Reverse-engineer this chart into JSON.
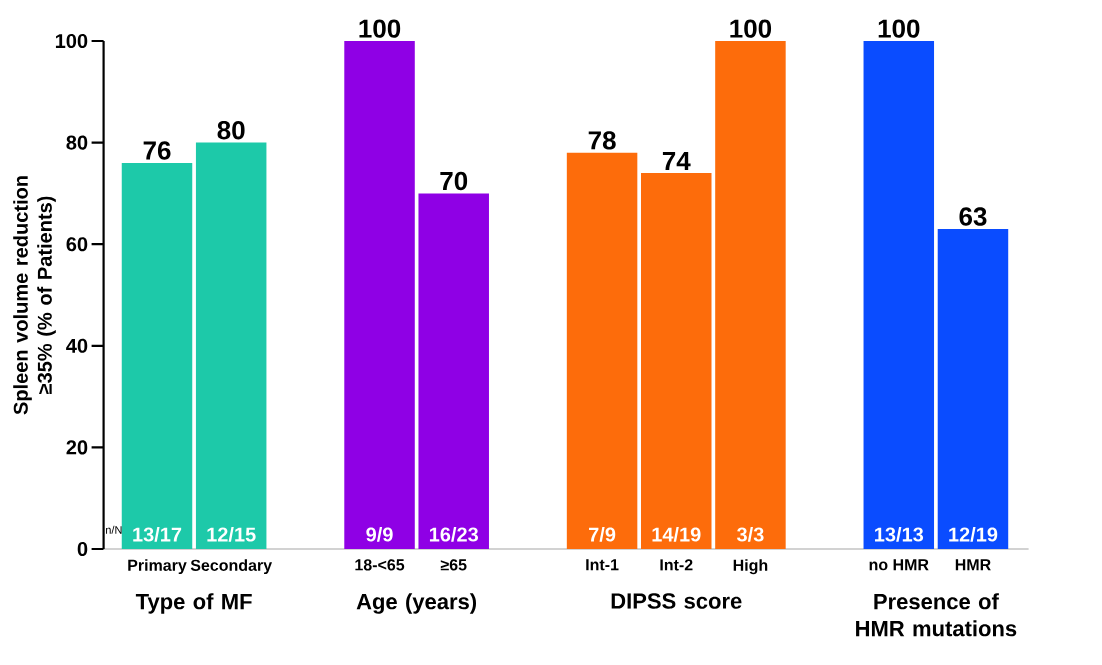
{
  "chart_data": {
    "type": "bar",
    "ylabel": "Spleen volume reduction ≥35% (% of Patients)",
    "categories": [
      "Primary",
      "Secondary",
      null,
      "18-<65",
      "≥65",
      null,
      "Int-1",
      "Int-2",
      "High",
      null,
      "no HMR",
      "HMR"
    ],
    "values": [
      76,
      80,
      null,
      100,
      70,
      null,
      78,
      74,
      100,
      null,
      100,
      63
    ],
    "colors": [
      "#1dc9a9",
      "#1dc9a9",
      null,
      "#8f00e5",
      "#8f00e5",
      null,
      "#fd6c0b",
      "#fd6c0b",
      "#fd6c0b",
      null,
      "#0a4cff",
      "#0a4cff"
    ],
    "ylim": [
      0,
      100
    ],
    "yticks": [
      0,
      20,
      40,
      60,
      80,
      100
    ],
    "grid": false,
    "data_labels": true,
    "annotations": [
      "Type of MF",
      "Age (years)",
      "DIPSS score",
      "Presence of HMR mutations",
      "n/N",
      {
        "text": "13/17",
        "x": "Primary",
        "y": 0
      },
      {
        "text": "12/15",
        "x": "Secondary",
        "y": 0
      },
      {
        "text": "9/9",
        "x": "18-<65",
        "y": 0
      },
      {
        "text": "16/23",
        "x": "≥65",
        "y": 0
      },
      {
        "text": "7/9",
        "x": "Int-1",
        "y": 0
      },
      {
        "text": "14/19",
        "x": "Int-2",
        "y": 0
      },
      {
        "text": "3/3",
        "x": "High",
        "y": 0
      },
      {
        "text": "13/13",
        "x": "no HMR",
        "y": 0
      },
      {
        "text": "12/19",
        "x": "HMR",
        "y": 0
      }
    ]
  }
}
